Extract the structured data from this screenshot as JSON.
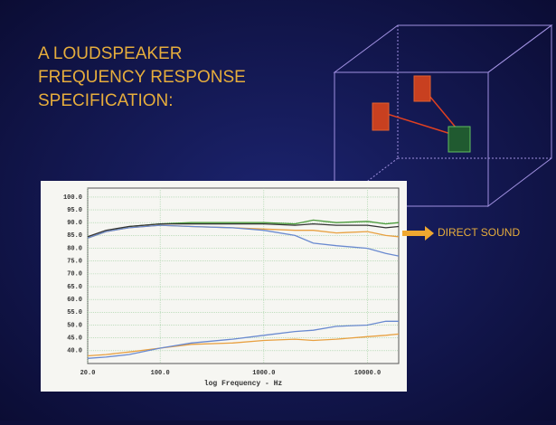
{
  "slide_title": [
    "A LOUDSPEAKER",
    "FREQUENCY RESPONSE",
    "SPECIFICATION:"
  ],
  "chart_data": {
    "type": "line",
    "xlabel": "log Frequency - Hz",
    "annotations": [
      "DIRECT SOUND"
    ],
    "xscale": "log",
    "grid": true,
    "x": [
      20,
      30,
      50,
      100,
      200,
      500,
      1000,
      2000,
      3000,
      5000,
      10000,
      15000,
      20000
    ],
    "xlim": [
      20,
      20000
    ],
    "xticks": [
      {
        "value": 20,
        "label": "20.0"
      },
      {
        "value": 100,
        "label": "100.0"
      },
      {
        "value": 1000,
        "label": "1000.0"
      },
      {
        "value": 10000,
        "label": "10000.0"
      }
    ],
    "ylim": [
      35,
      103.5
    ],
    "yticks": [
      {
        "value": 100,
        "label": "100.0"
      },
      {
        "value": 95,
        "label": "95.0"
      },
      {
        "value": 90,
        "label": "90.0"
      },
      {
        "value": 85,
        "label": "85.0"
      },
      {
        "value": 80,
        "label": "80.0"
      },
      {
        "value": 75,
        "label": "75.0"
      },
      {
        "value": 70,
        "label": "70.0"
      },
      {
        "value": 65,
        "label": "65.0"
      },
      {
        "value": 60,
        "label": "60.0"
      },
      {
        "value": 55,
        "label": "55.0"
      },
      {
        "value": 50,
        "label": "50.0"
      },
      {
        "value": 45,
        "label": "45.0"
      },
      {
        "value": 40,
        "label": "40.0"
      }
    ],
    "series": [
      {
        "color": "#4a9a3a",
        "values": [
          84,
          86.5,
          88.5,
          89.5,
          90,
          90,
          90,
          89.5,
          91,
          90,
          90.5,
          89.5,
          90
        ]
      },
      {
        "color": "#333333",
        "values": [
          84.5,
          87,
          88.5,
          89.5,
          89.5,
          89.5,
          89.5,
          89,
          89.5,
          89,
          89,
          88,
          88.5
        ]
      },
      {
        "color": "#e8a040",
        "values": [
          84,
          86.5,
          88,
          89,
          88.5,
          88,
          87.5,
          87,
          87,
          86,
          86.5,
          85,
          84.5
        ]
      },
      {
        "color": "#6a8ad0",
        "values": [
          84,
          86.5,
          88,
          89,
          88.5,
          88,
          87,
          85,
          82,
          81,
          80,
          78,
          77
        ]
      },
      {
        "color": "#e8a040",
        "values": [
          38,
          38.5,
          39.5,
          41,
          42.5,
          43,
          44,
          44.5,
          44,
          44.5,
          45.5,
          46,
          46.5
        ]
      },
      {
        "color": "#6a8ad0",
        "values": [
          37,
          37.5,
          38.5,
          41,
          43,
          44.5,
          46,
          47.5,
          48,
          49.5,
          50,
          51.5,
          51.5
        ]
      }
    ]
  }
}
